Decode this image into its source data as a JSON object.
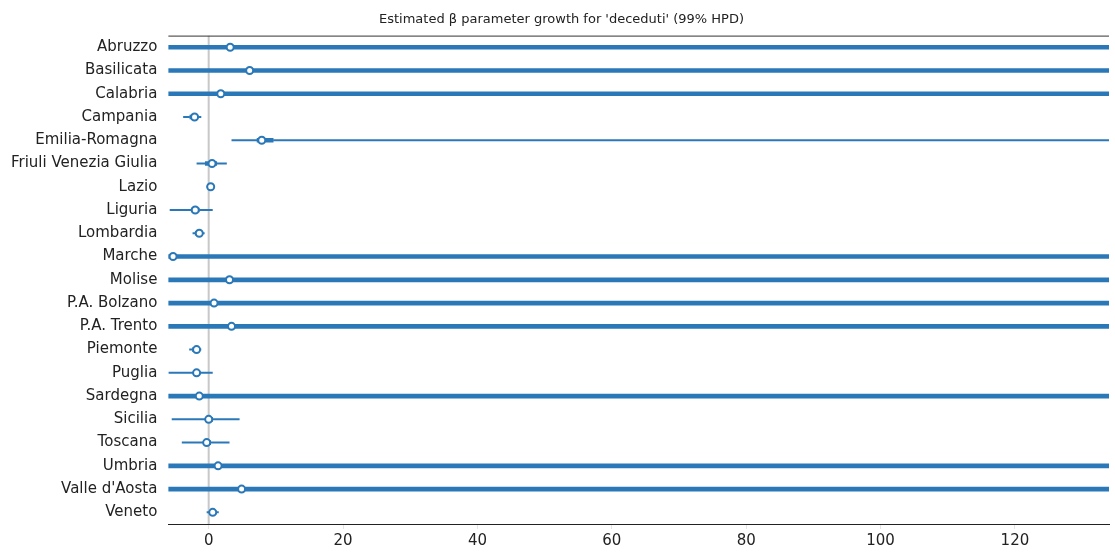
{
  "chart_data": {
    "type": "box",
    "orientation": "horizontal",
    "title": "Estimated β parameter growth for 'deceduti' (99% HPD)",
    "categories": [
      "Abruzzo",
      "Basilicata",
      "Calabria",
      "Campania",
      "Emilia-Romagna",
      "Friuli Venezia Giulia",
      "Lazio",
      "Liguria",
      "Lombardia",
      "Marche",
      "Molise",
      "P.A. Bolzano",
      "P.A. Trento",
      "Piemonte",
      "Puglia",
      "Sardegna",
      "Sicilia",
      "Toscana",
      "Umbria",
      "Valle d'Aosta",
      "Veneto"
    ],
    "color": "#2a78b8",
    "boxes": [
      {
        "low": -6,
        "q1": -6,
        "median": 3.2,
        "q3": 134,
        "high": 134
      },
      {
        "low": -6,
        "q1": -6,
        "median": 6.1,
        "q3": 134,
        "high": 134
      },
      {
        "low": -6,
        "q1": -6,
        "median": 1.8,
        "q3": 134,
        "high": 134
      },
      {
        "low": -3.8,
        "q1": -2.8,
        "median": -2.1,
        "q3": -1.6,
        "high": -1.1
      },
      {
        "low": 3.4,
        "q1": 7.2,
        "median": 7.9,
        "q3": 9.6,
        "high": 134
      },
      {
        "low": -1.8,
        "q1": -0.5,
        "median": 0.5,
        "q3": 1.2,
        "high": 2.7
      },
      {
        "low": -0.3,
        "q1": -0.1,
        "median": 0.3,
        "q3": 0.6,
        "high": 0.9
      },
      {
        "low": -5.8,
        "q1": -2.6,
        "median": -2.0,
        "q3": -1.4,
        "high": 0.6
      },
      {
        "low": -2.4,
        "q1": -2.0,
        "median": -1.4,
        "q3": -1.0,
        "high": -0.6
      },
      {
        "low": -6,
        "q1": -6,
        "median": -5.3,
        "q3": 134,
        "high": 134
      },
      {
        "low": -6,
        "q1": -6,
        "median": 3.1,
        "q3": 134,
        "high": 134
      },
      {
        "low": -6,
        "q1": -6,
        "median": 0.8,
        "q3": 134,
        "high": 134
      },
      {
        "low": -6,
        "q1": -6,
        "median": 3.4,
        "q3": 134,
        "high": 134
      },
      {
        "low": -2.9,
        "q1": -2.4,
        "median": -1.8,
        "q3": -1.4,
        "high": -1.1
      },
      {
        "low": -6,
        "q1": -2.3,
        "median": -1.8,
        "q3": -1.3,
        "high": 0.6
      },
      {
        "low": -6,
        "q1": -6,
        "median": -1.4,
        "q3": 134,
        "high": 134
      },
      {
        "low": -5.5,
        "q1": -0.5,
        "median": 0,
        "q3": 0.6,
        "high": 4.6
      },
      {
        "low": -4.0,
        "q1": -0.8,
        "median": -0.3,
        "q3": 0.3,
        "high": 3.1
      },
      {
        "low": -6,
        "q1": -6,
        "median": 1.4,
        "q3": 134,
        "high": 134
      },
      {
        "low": -6,
        "q1": -6,
        "median": 4.9,
        "q3": 134,
        "high": 134
      },
      {
        "low": -0.3,
        "q1": 0.2,
        "median": 0.6,
        "q3": 1.1,
        "high": 1.5
      }
    ],
    "xlim": [
      -6,
      134
    ],
    "xticks": [
      0,
      20,
      40,
      60,
      80,
      100,
      120
    ],
    "ref_lines": [
      {
        "axis": "x",
        "value": 0,
        "color": "#c8c8c8"
      }
    ],
    "grid": false,
    "legend": false
  }
}
